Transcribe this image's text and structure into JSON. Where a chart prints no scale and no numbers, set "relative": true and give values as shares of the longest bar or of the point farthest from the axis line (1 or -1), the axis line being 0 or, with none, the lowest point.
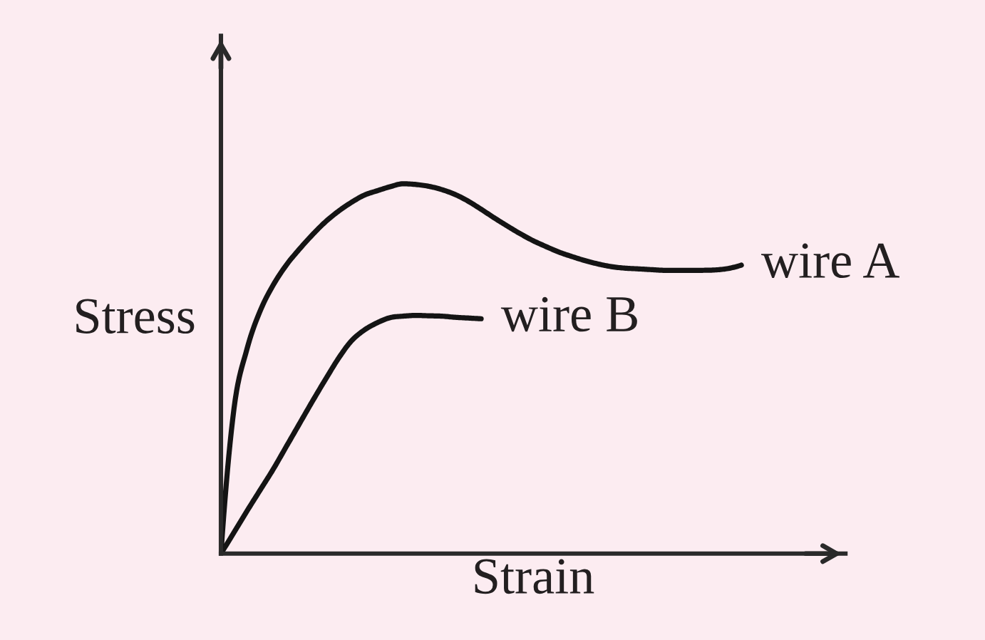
{
  "chart_data": {
    "type": "line",
    "relative": true,
    "xlabel": "Strain",
    "ylabel": "Stress",
    "tick_labels": false,
    "categories": [
      null,
      null,
      null,
      null,
      null,
      null,
      null,
      null,
      null,
      null,
      null,
      null,
      null,
      null,
      null,
      null,
      null,
      null,
      null,
      null,
      null,
      null,
      null,
      null,
      null,
      null,
      null,
      null,
      null,
      null,
      null,
      null,
      null,
      null,
      null,
      null,
      null,
      null,
      null,
      null,
      null
    ],
    "series": [
      {
        "name": "wire A",
        "color": "#141414",
        "values": [
          0,
          0.391,
          0.553,
          0.655,
          0.725,
          0.779,
          0.822,
          0.861,
          0.896,
          0.925,
          0.949,
          0.969,
          0.981,
          0.992,
          1,
          0.998,
          0.993,
          0.984,
          0.971,
          0.953,
          0.931,
          0.908,
          0.886,
          0.865,
          0.846,
          0.83,
          0.815,
          0.803,
          0.792,
          0.783,
          0.776,
          0.772,
          0.77,
          0.768,
          0.766,
          0.766,
          0.766,
          0.766,
          0.767,
          0.771,
          0.78
        ]
      },
      {
        "name": "wire B",
        "color": "#141414",
        "values": [
          0,
          0.057,
          0.115,
          0.171,
          0.227,
          0.288,
          0.349,
          0.41,
          0.469,
          0.526,
          0.574,
          0.604,
          0.624,
          0.638,
          0.642,
          0.644,
          0.643,
          0.642,
          0.639,
          0.637,
          0.635,
          null,
          null,
          null,
          null,
          null,
          null,
          null,
          null,
          null,
          null,
          null,
          null,
          null,
          null,
          null,
          null,
          null,
          null,
          null,
          null
        ]
      }
    ]
  }
}
